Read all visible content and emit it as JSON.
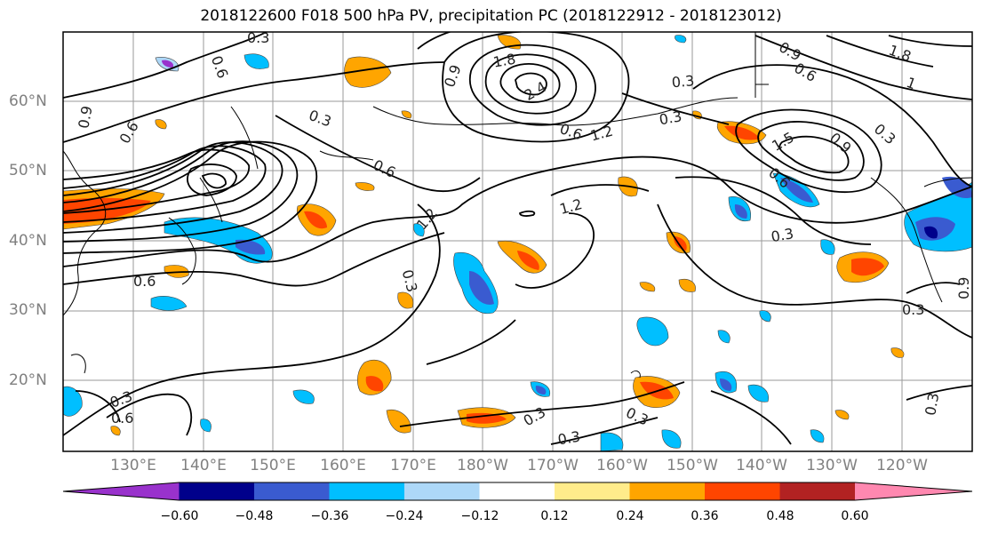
{
  "title": "2018122600 F018 500 hPa PV, precipitation PC (2018122912 - 2018123012)",
  "axes": {
    "lat_labels": [
      "60°N",
      "50°N",
      "40°N",
      "30°N",
      "20°N"
    ],
    "lon_labels": [
      "130°E",
      "140°E",
      "150°E",
      "160°E",
      "170°E",
      "180°W",
      "170°W",
      "160°W",
      "150°W",
      "140°W",
      "130°W",
      "120°W"
    ]
  },
  "contour_labels": [
    "0.3",
    "0.6",
    "0.9",
    "0.6",
    "0.3",
    "1.8",
    "2.4",
    "0.9",
    "0.6",
    "1.2",
    "0.3",
    "1.2",
    "0.3",
    "0.6",
    "1.5",
    "0.9",
    "0.6",
    "0.3",
    "1.2",
    "0.9",
    "0.6",
    "1",
    "0.3",
    "1.8",
    "0.6",
    "0.3",
    "0.3",
    "0.3",
    "0.6",
    "0.3",
    "0.3",
    "0.3",
    "0.9",
    "0.3"
  ],
  "colorbar": {
    "colors": [
      "#9932cc",
      "#00008b",
      "#3a5bd0",
      "#00bfff",
      "#add8f8",
      "#ffffff",
      "#ffec8b",
      "#ffa500",
      "#ff4500",
      "#b22222",
      "#ff88b0"
    ],
    "tick_labels": [
      "−0.60",
      "−0.48",
      "−0.36",
      "−0.24",
      "−0.12",
      "0.12",
      "0.24",
      "0.36",
      "0.48",
      "0.60"
    ]
  }
}
